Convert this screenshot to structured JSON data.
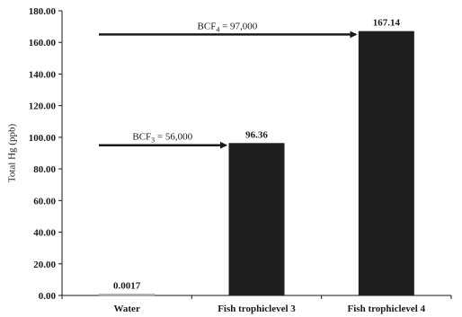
{
  "chart_data": {
    "type": "bar",
    "title": "",
    "xlabel": "",
    "ylabel": "Total Hg (ppb)",
    "ylim": [
      0,
      180
    ],
    "yticks": [
      "0.00",
      "20.00",
      "40.00",
      "60.00",
      "80.00",
      "100.00",
      "120.00",
      "140.00",
      "160.00",
      "180.00"
    ],
    "categories": [
      "Water",
      "Fish trophiclevel 3",
      "Fish trophiclevel 4"
    ],
    "values": [
      0.0017,
      96.36,
      167.14
    ],
    "value_labels": [
      "0.0017",
      "96.36",
      "167.14"
    ],
    "bar_color": "#1f1f1f",
    "grid": false,
    "legend": "none",
    "annotations": [
      {
        "prefix": "BCF",
        "subscript": "3",
        "suffix": " = 56,000",
        "arrow_to_category": "Fish trophiclevel 3",
        "arrow_y_value": 95
      },
      {
        "prefix": "BCF",
        "subscript": "4",
        "suffix": " = 97,000",
        "arrow_to_category": "Fish trophiclevel 4",
        "arrow_y_value": 165
      }
    ]
  }
}
